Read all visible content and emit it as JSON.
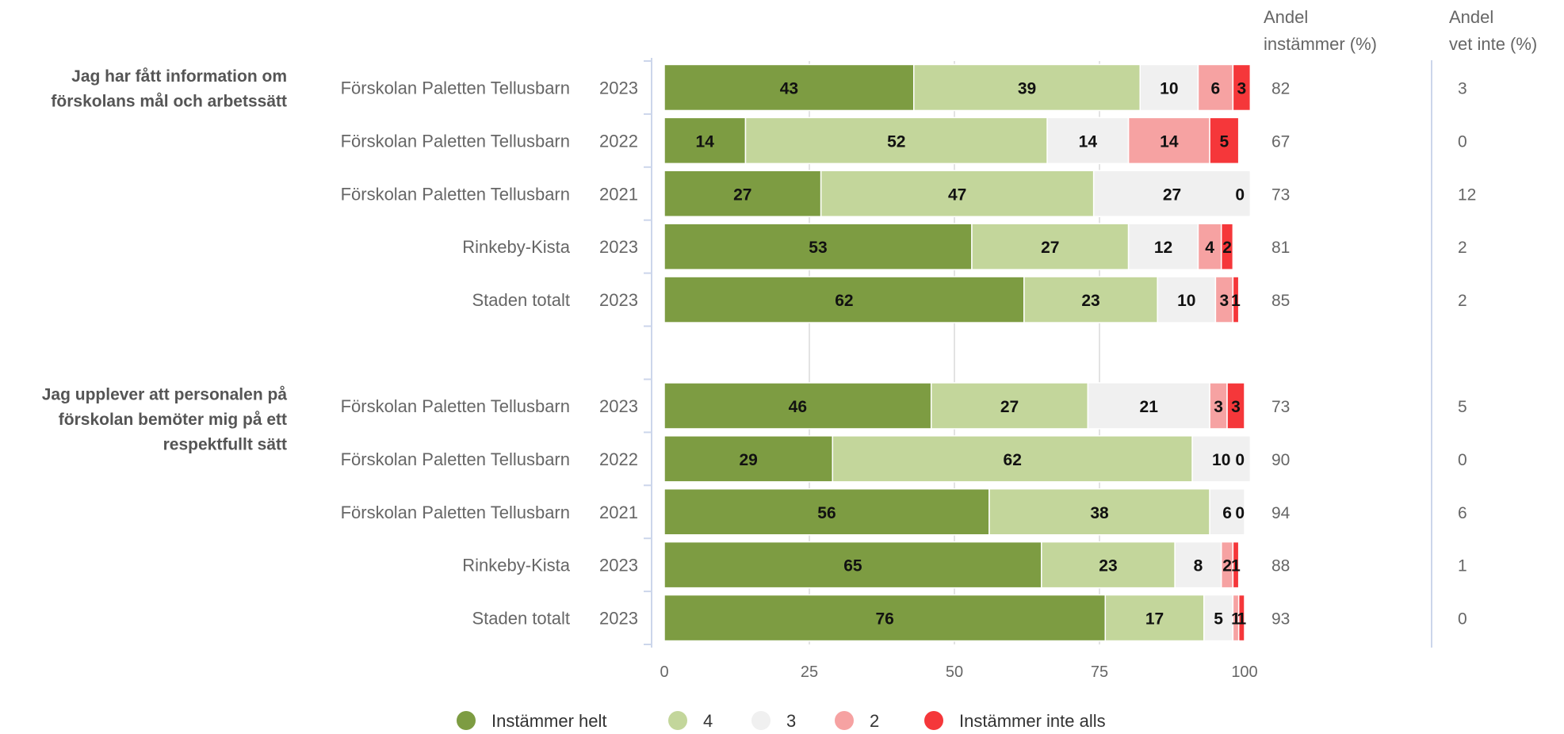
{
  "chart_data": {
    "type": "bar",
    "orientation": "horizontal",
    "stacked": true,
    "xlim": [
      0,
      100
    ],
    "x_ticks": [
      "0",
      "25",
      "50",
      "75",
      "100"
    ],
    "grid": true,
    "legend_position": "bottom",
    "column_headers": {
      "agree_line1": "Andel",
      "agree_line2": "instämmer (%)",
      "dontknow_line1": "Andel",
      "dontknow_line2": "vet inte (%)"
    },
    "series": [
      {
        "name": "Instämmer helt",
        "color": "#7d9c42"
      },
      {
        "name": "4",
        "color": "#c3d69b"
      },
      {
        "name": "3",
        "color": "#f0f0f0"
      },
      {
        "name": "2",
        "color": "#f6a2a2"
      },
      {
        "name": "Instämmer inte alls",
        "color": "#f5373a"
      }
    ],
    "groups": [
      {
        "question_lines": [
          "Jag har fått information om",
          "förskolans mål och arbetssätt"
        ],
        "rows": [
          {
            "unit": "Förskolan Paletten Tellusbarn",
            "year": "2023",
            "values": [
              43,
              39,
              10,
              6,
              3
            ],
            "agree": "82",
            "dont_know": "3"
          },
          {
            "unit": "Förskolan Paletten Tellusbarn",
            "year": "2022",
            "values": [
              14,
              52,
              14,
              14,
              5
            ],
            "agree": "67",
            "dont_know": "0"
          },
          {
            "unit": "Förskolan Paletten Tellusbarn",
            "year": "2021",
            "values": [
              27,
              47,
              27,
              0,
              0
            ],
            "agree": "73",
            "dont_know": "12"
          },
          {
            "unit": "Rinkeby-Kista",
            "year": "2023",
            "values": [
              53,
              27,
              12,
              4,
              2
            ],
            "agree": "81",
            "dont_know": "2"
          },
          {
            "unit": "Staden totalt",
            "year": "2023",
            "values": [
              62,
              23,
              10,
              3,
              1
            ],
            "agree": "85",
            "dont_know": "2"
          }
        ]
      },
      {
        "question_lines": [
          "Jag upplever att personalen på",
          "förskolan bemöter mig på ett",
          "respektfullt sätt"
        ],
        "rows": [
          {
            "unit": "Förskolan Paletten Tellusbarn",
            "year": "2023",
            "values": [
              46,
              27,
              21,
              3,
              3
            ],
            "agree": "73",
            "dont_know": "5"
          },
          {
            "unit": "Förskolan Paletten Tellusbarn",
            "year": "2022",
            "values": [
              29,
              62,
              10,
              0,
              0
            ],
            "agree": "90",
            "dont_know": "0"
          },
          {
            "unit": "Förskolan Paletten Tellusbarn",
            "year": "2021",
            "values": [
              56,
              38,
              6,
              0,
              0
            ],
            "agree": "94",
            "dont_know": "6"
          },
          {
            "unit": "Rinkeby-Kista",
            "year": "2023",
            "values": [
              65,
              23,
              8,
              2,
              1
            ],
            "agree": "88",
            "dont_know": "1"
          },
          {
            "unit": "Staden totalt",
            "year": "2023",
            "values": [
              76,
              17,
              5,
              1,
              1
            ],
            "agree": "93",
            "dont_know": "0"
          }
        ]
      }
    ]
  }
}
